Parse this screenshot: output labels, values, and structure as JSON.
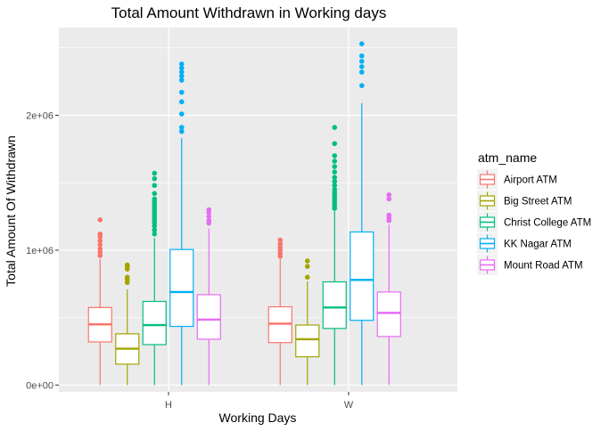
{
  "chart_data": {
    "type": "boxplot",
    "title": "Total Amount Withdrawn in Working days",
    "xlabel": "Working Days",
    "ylabel": "Total Amount Of Withdrawn",
    "categories": [
      "H",
      "W"
    ],
    "yticks": [
      {
        "value": 0,
        "label": "0e+00"
      },
      {
        "value": 1000000,
        "label": "1e+06"
      },
      {
        "value": 2000000,
        "label": "2e+06"
      }
    ],
    "ylim": [
      -50000,
      2650000
    ],
    "grid": true,
    "legend": {
      "title": "atm_name",
      "position": "right"
    },
    "series": [
      {
        "name": "Airport ATM",
        "color": "#F8766D",
        "boxes": [
          {
            "min": 0,
            "q1": 320000,
            "median": 450000,
            "q3": 575000,
            "max": 935000,
            "outliers": [
              960000,
              985000,
              1010000,
              1040000,
              1070000,
              1100000,
              1120000,
              1225000
            ]
          },
          {
            "min": 0,
            "q1": 315000,
            "median": 455000,
            "q3": 580000,
            "max": 935000,
            "outliers": [
              955000,
              975000,
              1000000,
              1020000,
              1045000,
              1075000
            ]
          }
        ]
      },
      {
        "name": "Big Street ATM",
        "color": "#A3A500",
        "boxes": [
          {
            "min": 0,
            "q1": 155000,
            "median": 270000,
            "q3": 380000,
            "max": 710000,
            "outliers": [
              760000,
              780000,
              800000,
              860000,
              880000,
              890000
            ]
          },
          {
            "min": 0,
            "q1": 210000,
            "median": 340000,
            "q3": 445000,
            "max": 770000,
            "outliers": [
              800000,
              880000,
              920000
            ]
          }
        ]
      },
      {
        "name": "Christ College ATM",
        "color": "#00BF7D",
        "boxes": [
          {
            "min": 0,
            "q1": 300000,
            "median": 445000,
            "q3": 620000,
            "max": 1090000,
            "outliers": [
              1120000,
              1150000,
              1180000,
              1200000,
              1220000,
              1240000,
              1260000,
              1280000,
              1300000,
              1320000,
              1340000,
              1360000,
              1380000,
              1420000,
              1480000,
              1530000,
              1570000
            ]
          },
          {
            "min": 0,
            "q1": 420000,
            "median": 575000,
            "q3": 765000,
            "max": 1290000,
            "outliers": [
              1310000,
              1330000,
              1350000,
              1370000,
              1390000,
              1410000,
              1430000,
              1450000,
              1480000,
              1510000,
              1540000,
              1580000,
              1620000,
              1660000,
              1700000,
              1790000,
              1910000
            ]
          }
        ]
      },
      {
        "name": "KK Nagar ATM",
        "color": "#00B0F6",
        "boxes": [
          {
            "min": 0,
            "q1": 435000,
            "median": 690000,
            "q3": 1005000,
            "max": 1830000,
            "outliers": [
              1880000,
              1910000,
              2010000,
              2100000,
              2170000,
              2260000,
              2290000,
              2320000,
              2350000,
              2380000
            ]
          },
          {
            "min": 0,
            "q1": 480000,
            "median": 780000,
            "q3": 1135000,
            "max": 2090000,
            "outliers": [
              2220000,
              2320000,
              2360000,
              2400000,
              2440000,
              2530000
            ]
          }
        ]
      },
      {
        "name": "Mount Road ATM",
        "color": "#E76BF3",
        "boxes": [
          {
            "min": 0,
            "q1": 340000,
            "median": 485000,
            "q3": 670000,
            "max": 1160000,
            "outliers": [
              1200000,
              1220000,
              1250000,
              1280000,
              1300000
            ]
          },
          {
            "min": 0,
            "q1": 360000,
            "median": 535000,
            "q3": 690000,
            "max": 1190000,
            "outliers": [
              1220000,
              1240000,
              1260000,
              1380000,
              1410000
            ]
          }
        ]
      }
    ]
  }
}
